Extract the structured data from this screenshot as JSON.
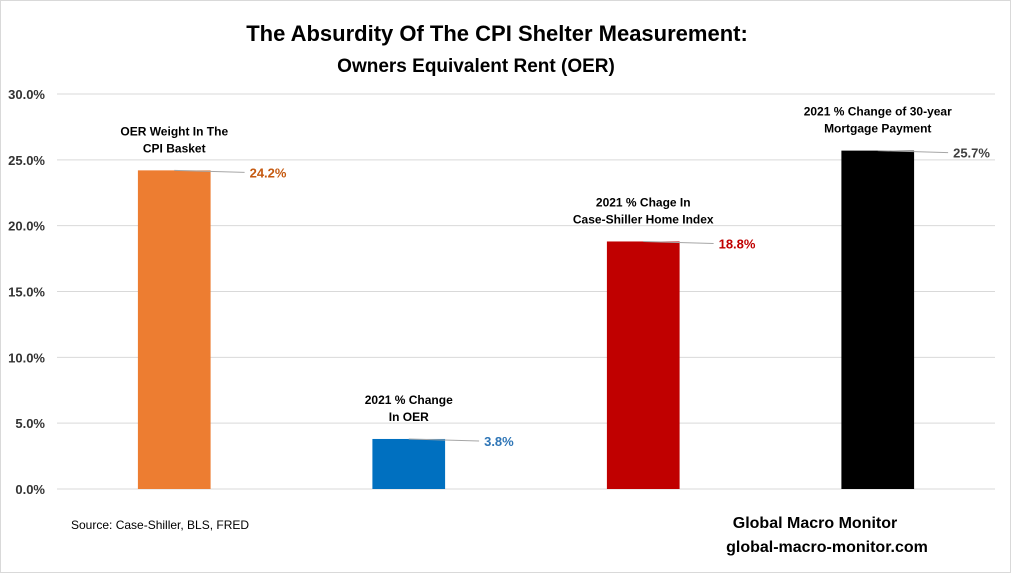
{
  "chart_data": {
    "type": "bar",
    "title": "The Absurdity Of The CPI Shelter Measurement:",
    "subtitle": "Owners Equivalent Rent (OER)",
    "ylim": [
      0,
      30
    ],
    "yticks": [
      0,
      5,
      10,
      15,
      20,
      25,
      30
    ],
    "ytick_labels": [
      "0.0%",
      "5.0%",
      "10.0%",
      "15.0%",
      "20.0%",
      "25.0%",
      "30.0%"
    ],
    "grid": true,
    "legend": "none",
    "bars": [
      {
        "label_lines": [
          "OER Weight In The",
          "CPI Basket"
        ],
        "value": 24.2,
        "value_label": "24.2%",
        "color": "#ED7D31",
        "label_color": "#C55A11"
      },
      {
        "label_lines": [
          "2021 % Change",
          "In OER"
        ],
        "value": 3.8,
        "value_label": "3.8%",
        "color": "#0070C0",
        "label_color": "#2E75B6"
      },
      {
        "label_lines": [
          "2021 % Chage In",
          "Case-Shiller Home Index"
        ],
        "value": 18.8,
        "value_label": "18.8%",
        "color": "#C00000",
        "label_color": "#C00000"
      },
      {
        "label_lines": [
          "2021 %  Change of 30-year",
          "Mortgage Payment"
        ],
        "value": 25.7,
        "value_label": "25.7%",
        "color": "#000000",
        "label_color": "#404040"
      }
    ]
  },
  "footer": {
    "source": "Source:  Case-Shiller, BLS, FRED",
    "brand_name": "Global Macro Monitor",
    "brand_url": "global-macro-monitor.com"
  }
}
